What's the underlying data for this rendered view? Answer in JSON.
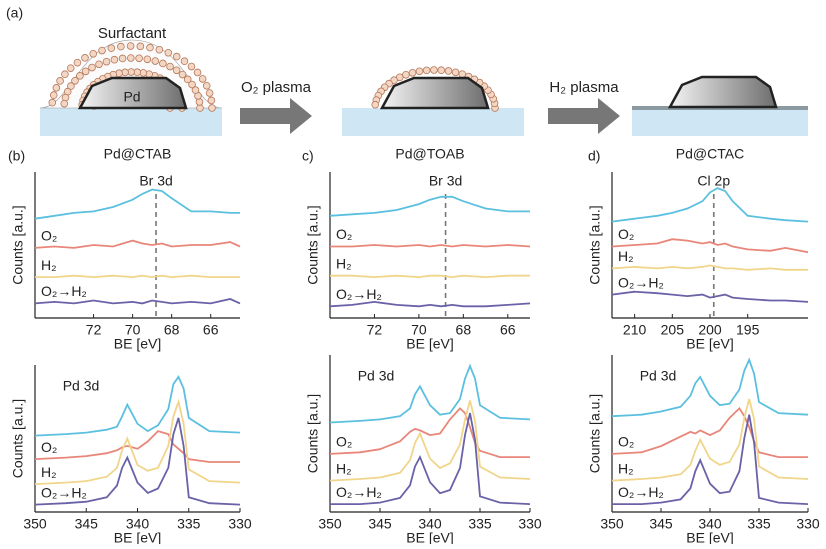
{
  "schematic": {
    "panel_label": "(a)",
    "surfactant": "Surfactant",
    "core": "Pd",
    "step1": "O₂ plasma",
    "step2": "H₂ plasma"
  },
  "chart_data": [
    {
      "type": "line",
      "panel_label": "(b)",
      "title": "Pd@CTAB",
      "annotation": "Br 3d",
      "marker_x": 68.8,
      "xlabel": "BE [eV]",
      "ylabel": "Counts [a.u.]",
      "x": [
        75,
        74,
        73,
        72,
        71,
        70,
        69.5,
        69,
        68.5,
        68,
        67,
        66,
        65,
        64.5
      ],
      "xlim": [
        75,
        64.5
      ],
      "xticks": [
        72,
        70,
        68,
        66
      ],
      "ylim": [
        0,
        10
      ],
      "series": [
        {
          "color": "#5bc0e0",
          "values": [
            6.8,
            7.0,
            7.2,
            7.3,
            7.6,
            8.1,
            8.5,
            8.8,
            8.7,
            8.2,
            7.3,
            7.3,
            7.2,
            7.2
          ]
        },
        {
          "name": "O₂",
          "color": "#e8867a",
          "values": [
            4.8,
            4.9,
            4.8,
            5.0,
            4.9,
            5.3,
            5.1,
            5.0,
            5.1,
            4.9,
            5.0,
            5.0,
            5.2,
            4.9
          ]
        },
        {
          "name": "H₂",
          "color": "#f0d58a",
          "values": [
            2.8,
            2.8,
            2.9,
            2.8,
            2.9,
            2.8,
            2.9,
            2.8,
            2.9,
            2.8,
            2.9,
            2.8,
            2.8,
            2.8
          ]
        },
        {
          "name": "O₂→H₂",
          "color": "#6a62a8",
          "values": [
            1.0,
            1.1,
            1.0,
            1.2,
            1.0,
            1.1,
            1.0,
            1.2,
            1.1,
            1.0,
            1.1,
            1.0,
            1.3,
            1.0
          ]
        }
      ]
    },
    {
      "type": "line",
      "panel_label": "c)",
      "title": "Pd@TOAB",
      "annotation": "Br 3d",
      "marker_x": 68.8,
      "xlabel": "BE [eV]",
      "ylabel": "Counts [a.u.]",
      "x": [
        74,
        73,
        72,
        71,
        70,
        69.5,
        69,
        68.5,
        68,
        67,
        66,
        65
      ],
      "xlim": [
        74,
        65
      ],
      "xticks": [
        72,
        70,
        68,
        66
      ],
      "ylim": [
        0,
        10
      ],
      "series": [
        {
          "color": "#5bc0e0",
          "values": [
            7.0,
            7.1,
            7.2,
            7.4,
            7.8,
            8.1,
            8.3,
            8.3,
            8.0,
            7.5,
            7.3,
            7.3
          ]
        },
        {
          "name": "O₂",
          "color": "#e8867a",
          "values": [
            4.9,
            4.9,
            5.0,
            4.9,
            5.0,
            4.9,
            5.0,
            4.9,
            5.0,
            4.9,
            5.0,
            4.9
          ]
        },
        {
          "name": "H₂",
          "color": "#f0d58a",
          "values": [
            2.9,
            2.9,
            2.8,
            2.9,
            2.8,
            2.9,
            2.9,
            2.8,
            2.9,
            2.8,
            2.9,
            2.9
          ]
        },
        {
          "name": "O₂→H₂",
          "color": "#6a62a8",
          "values": [
            0.8,
            0.9,
            1.1,
            0.9,
            0.8,
            0.9,
            0.8,
            0.9,
            0.8,
            0.8,
            0.9,
            1.0
          ]
        }
      ]
    },
    {
      "type": "line",
      "panel_label": "d)",
      "title": "Pd@CTAC",
      "annotation": "Cl 2p",
      "marker_x": 199.5,
      "xlabel": "BE [eV]",
      "ylabel": "Counts [a.u.]",
      "x": [
        213,
        210,
        207,
        205,
        203,
        201,
        200,
        199,
        198,
        197,
        195,
        192,
        190,
        187
      ],
      "xlim": [
        213,
        187
      ],
      "xticks": [
        210,
        205,
        200,
        195
      ],
      "ylim": [
        0,
        10
      ],
      "series": [
        {
          "color": "#5bc0e0",
          "values": [
            6.6,
            6.8,
            7.0,
            7.2,
            7.5,
            8.0,
            8.6,
            8.9,
            8.7,
            8.0,
            7.0,
            6.8,
            6.7,
            6.6
          ]
        },
        {
          "name": "O₂",
          "color": "#e8867a",
          "values": [
            4.9,
            5.0,
            5.1,
            5.4,
            5.3,
            5.1,
            5.2,
            5.0,
            5.1,
            4.9,
            4.7,
            4.6,
            4.8,
            4.5
          ]
        },
        {
          "name": "H₂",
          "color": "#f0d58a",
          "values": [
            3.4,
            3.5,
            3.4,
            3.5,
            3.4,
            3.5,
            3.6,
            3.5,
            3.4,
            3.4,
            3.3,
            3.4,
            3.3,
            3.3
          ]
        },
        {
          "name": "O₂→H₂",
          "color": "#6a62a8",
          "values": [
            1.6,
            1.8,
            1.7,
            1.6,
            1.5,
            1.6,
            1.4,
            1.5,
            1.6,
            1.4,
            1.3,
            1.2,
            1.2,
            1.1
          ]
        }
      ]
    },
    {
      "type": "line",
      "annotation": "Pd 3d",
      "xlabel": "BE [eV]",
      "ylabel": "Counts [a.u.]",
      "x": [
        350,
        347,
        345,
        343,
        342,
        341.5,
        341,
        340,
        339,
        338,
        337,
        336.5,
        336,
        335.5,
        335,
        333,
        330
      ],
      "xlim": [
        350,
        330
      ],
      "xticks": [
        350,
        345,
        340,
        335,
        330
      ],
      "ylim": [
        0,
        10
      ],
      "series": [
        {
          "color": "#5bc0e0",
          "values": [
            5.2,
            5.3,
            5.4,
            5.6,
            5.8,
            6.5,
            7.3,
            6.0,
            5.5,
            5.9,
            7.0,
            8.7,
            9.2,
            8.4,
            6.4,
            5.5,
            5.4
          ]
        },
        {
          "name": "O₂",
          "color": "#e8867a",
          "values": [
            3.6,
            3.7,
            3.8,
            4.0,
            4.2,
            4.4,
            4.5,
            4.3,
            4.8,
            5.5,
            5.3,
            4.6,
            4.3,
            4.0,
            3.6,
            3.4,
            3.4
          ]
        },
        {
          "name": "H₂",
          "color": "#f0d58a",
          "values": [
            1.9,
            2.0,
            2.1,
            2.4,
            3.0,
            4.2,
            5.0,
            3.2,
            2.8,
            3.0,
            4.5,
            6.5,
            7.5,
            6.0,
            2.9,
            2.1,
            2.0
          ]
        },
        {
          "name": "O₂→H₂",
          "color": "#6a62a8",
          "values": [
            0.5,
            0.6,
            0.7,
            1.0,
            1.8,
            3.0,
            3.7,
            2.0,
            1.3,
            1.6,
            3.0,
            5.3,
            6.4,
            4.5,
            1.0,
            0.6,
            0.5
          ]
        }
      ]
    },
    {
      "type": "line",
      "annotation": "Pd 3d",
      "xlabel": "BE [eV]",
      "ylabel": "Counts [a.u.]",
      "x": [
        350,
        347,
        345,
        343,
        342,
        341.5,
        341,
        340,
        339,
        338,
        337,
        336.5,
        336,
        335.5,
        335,
        333,
        330
      ],
      "xlim": [
        350,
        330
      ],
      "xticks": [
        350,
        345,
        340,
        335,
        330
      ],
      "ylim": [
        0,
        10
      ],
      "series": [
        {
          "color": "#5bc0e0",
          "values": [
            5.7,
            5.8,
            5.9,
            6.1,
            6.6,
            7.5,
            8.0,
            6.8,
            6.2,
            6.3,
            7.2,
            8.5,
            9.3,
            8.5,
            6.8,
            6.0,
            5.9
          ]
        },
        {
          "name": "O₂",
          "color": "#e8867a",
          "values": [
            3.7,
            3.8,
            4.0,
            4.5,
            5.1,
            5.3,
            5.2,
            4.9,
            5.0,
            5.9,
            6.6,
            6.3,
            5.4,
            4.4,
            3.9,
            3.5,
            3.5
          ]
        },
        {
          "name": "H₂",
          "color": "#f0d58a",
          "values": [
            2.0,
            2.1,
            2.2,
            2.5,
            3.3,
            4.4,
            5.0,
            3.4,
            2.8,
            3.1,
            4.3,
            5.9,
            7.1,
            5.8,
            2.9,
            2.2,
            2.1
          ]
        },
        {
          "name": "O₂→H₂",
          "color": "#6a62a8",
          "values": [
            0.5,
            0.5,
            0.6,
            0.9,
            1.7,
            2.9,
            3.5,
            1.9,
            1.2,
            1.4,
            2.8,
            4.9,
            6.3,
            4.6,
            1.0,
            0.6,
            0.5
          ]
        }
      ]
    },
    {
      "type": "line",
      "annotation": "Pd 3d",
      "xlabel": "BE [eV]",
      "ylabel": "Counts [a.u.]",
      "x": [
        350,
        347,
        345,
        343,
        342,
        341.5,
        341,
        340,
        339,
        338,
        337,
        336.5,
        336,
        335.5,
        335,
        333,
        330
      ],
      "xlim": [
        350,
        330
      ],
      "xticks": [
        350,
        345,
        340,
        335,
        330
      ],
      "ylim": [
        0,
        10
      ],
      "series": [
        {
          "color": "#5bc0e0",
          "values": [
            6.1,
            6.2,
            6.4,
            6.7,
            7.4,
            8.2,
            8.6,
            7.4,
            6.8,
            6.9,
            7.8,
            9.0,
            9.7,
            8.8,
            7.0,
            6.3,
            6.2
          ]
        },
        {
          "name": "O₂",
          "color": "#e8867a",
          "values": [
            3.7,
            3.8,
            4.2,
            4.8,
            5.1,
            5.0,
            5.2,
            4.9,
            5.2,
            6.0,
            6.6,
            6.1,
            5.4,
            4.5,
            3.8,
            3.5,
            3.5
          ]
        },
        {
          "name": "H₂",
          "color": "#f0d58a",
          "values": [
            2.0,
            2.1,
            2.2,
            2.4,
            3.0,
            3.9,
            4.6,
            3.4,
            3.0,
            3.2,
            4.3,
            6.0,
            7.2,
            5.9,
            2.9,
            2.2,
            2.1
          ]
        },
        {
          "name": "O₂→H₂",
          "color": "#6a62a8",
          "values": [
            0.5,
            0.5,
            0.6,
            0.8,
            1.5,
            2.6,
            3.3,
            1.8,
            1.2,
            1.3,
            2.6,
            4.7,
            6.2,
            4.4,
            0.9,
            0.6,
            0.5
          ]
        }
      ]
    }
  ]
}
